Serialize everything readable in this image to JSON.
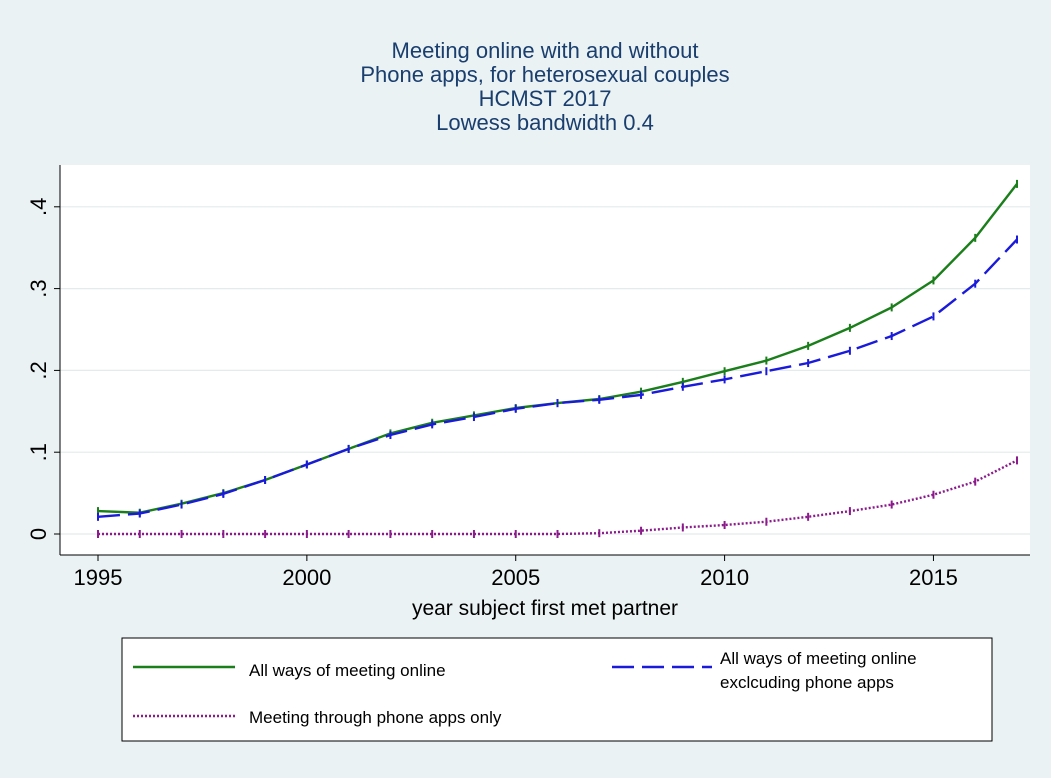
{
  "chart_data": {
    "type": "line",
    "title": [
      "Meeting online with and without",
      "Phone apps, for heterosexual couples",
      "HCMST 2017",
      "Lowess bandwidth 0.4"
    ],
    "xlabel": "year subject first met partner",
    "ylabel": "",
    "xlim": [
      1995,
      2017
    ],
    "ylim": [
      0,
      0.44
    ],
    "x_ticks": [
      1995,
      2000,
      2005,
      2010,
      2015
    ],
    "x_tick_labels": [
      "1995",
      "2000",
      "2005",
      "2010",
      "2015"
    ],
    "y_ticks": [
      0,
      0.1,
      0.2,
      0.3,
      0.4
    ],
    "y_tick_labels": [
      "0",
      ".1",
      ".2",
      ".3",
      ".4"
    ],
    "grid": true,
    "legend_position": "bottom",
    "x": [
      1995,
      1996,
      1997,
      1998,
      1999,
      2000,
      2001,
      2002,
      2003,
      2004,
      2005,
      2006,
      2007,
      2008,
      2009,
      2010,
      2011,
      2012,
      2013,
      2014,
      2015,
      2016,
      2017
    ],
    "series": [
      {
        "name": "All ways of meeting online",
        "color": "#1a7f1a",
        "style": "solid",
        "values": [
          0.028,
          0.026,
          0.037,
          0.05,
          0.066,
          0.085,
          0.104,
          0.123,
          0.136,
          0.145,
          0.154,
          0.16,
          0.165,
          0.174,
          0.186,
          0.199,
          0.212,
          0.23,
          0.252,
          0.277,
          0.31,
          0.362,
          0.428
        ]
      },
      {
        "name": "All ways of meeting online exclcuding phone apps",
        "legend_lines": [
          "All ways of meeting online",
          "exclcuding phone apps"
        ],
        "color": "#1a1adb",
        "style": "dashed",
        "values": [
          0.021,
          0.025,
          0.036,
          0.049,
          0.066,
          0.085,
          0.104,
          0.121,
          0.134,
          0.143,
          0.153,
          0.16,
          0.164,
          0.17,
          0.18,
          0.189,
          0.199,
          0.209,
          0.224,
          0.242,
          0.266,
          0.306,
          0.36
        ]
      },
      {
        "name": "Meeting through phone apps only",
        "color": "#8b1a8b",
        "style": "dotted",
        "values": [
          0.0,
          0.0,
          0.0,
          0.0,
          0.0,
          0.0,
          0.0,
          0.0,
          0.0,
          0.0,
          0.0,
          0.0,
          0.001,
          0.004,
          0.008,
          0.011,
          0.015,
          0.021,
          0.028,
          0.036,
          0.048,
          0.064,
          0.09
        ]
      }
    ]
  }
}
